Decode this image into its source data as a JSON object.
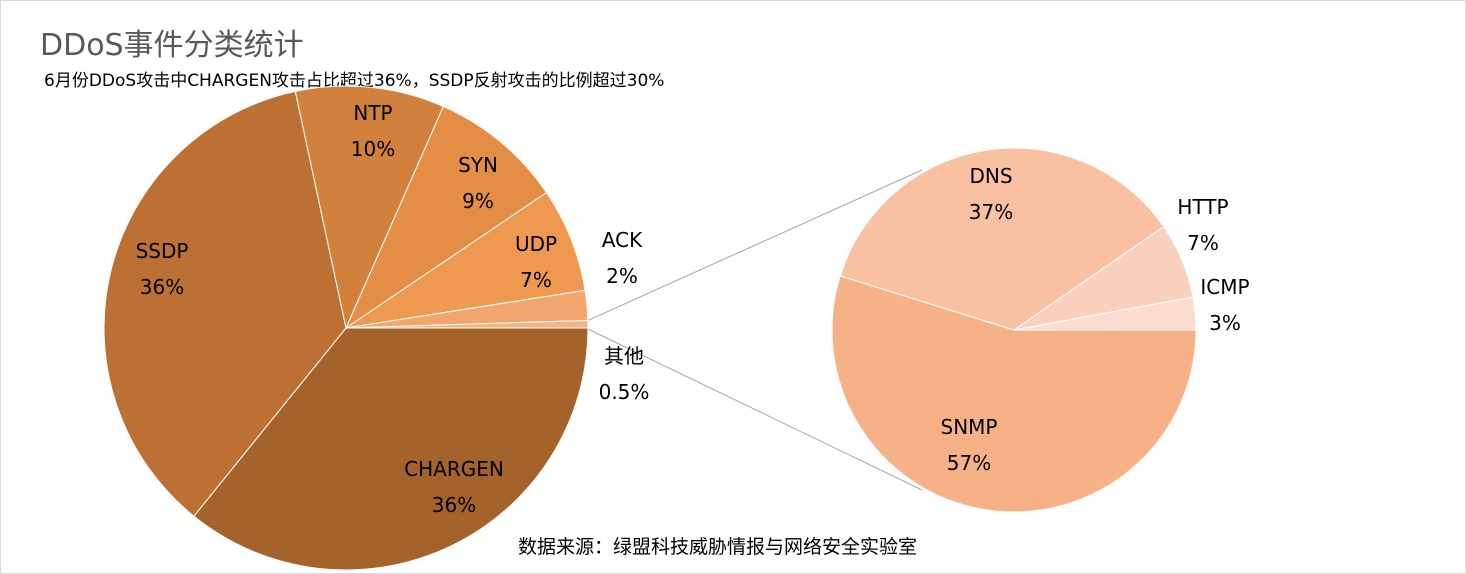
{
  "title": "DDoS事件分类统计",
  "subtitle": "6月份DDoS攻击中CHARGEN攻击占比超过36%，SSDP反射攻击的比例超过30%",
  "source": "数据来源：绿盟科技威胁情报与网络安全实验室",
  "chart_data": [
    {
      "type": "pie",
      "slices": [
        {
          "label": "CHARGEN",
          "value": 36,
          "display": "36%",
          "color": "#a5632c"
        },
        {
          "label": "SSDP",
          "value": 36,
          "display": "36%",
          "color": "#bc7034"
        },
        {
          "label": "NTP",
          "value": 10,
          "display": "10%",
          "color": "#d2813c"
        },
        {
          "label": "SYN",
          "value": 9,
          "display": "9%",
          "color": "#e48e45"
        },
        {
          "label": "UDP",
          "value": 7,
          "display": "7%",
          "color": "#ee9850"
        },
        {
          "label": "ACK",
          "value": 2,
          "display": "2%",
          "color": "#f3a56e"
        },
        {
          "label": "其他",
          "value": 0.5,
          "display": "0.5%",
          "color": "#f6b27f"
        }
      ]
    },
    {
      "type": "pie",
      "breakdown_of": "其他",
      "slices": [
        {
          "label": "SNMP",
          "value": 57,
          "display": "57%",
          "color": "#f6b286"
        },
        {
          "label": "DNS",
          "value": 37,
          "display": "37%",
          "color": "#f9c0a2"
        },
        {
          "label": "HTTP",
          "value": 7,
          "display": "7%",
          "color": "#fad1be"
        },
        {
          "label": "ICMP",
          "value": 3,
          "display": "3%",
          "color": "#fbdccf"
        }
      ]
    }
  ]
}
